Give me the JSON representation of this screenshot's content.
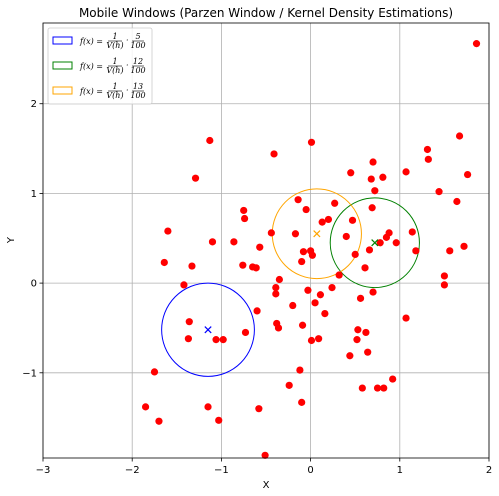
{
  "chart_data": {
    "type": "scatter",
    "title": "Mobile Windows (Parzen Window / Kernel Density Estimations)",
    "xlabel": "X",
    "ylabel": "Y",
    "xlim": [
      -3,
      2
    ],
    "ylim": [
      -1.95,
      2.9
    ],
    "xticks": [
      "−3",
      "−2",
      "−1",
      "0",
      "1",
      "2"
    ],
    "yticks": [
      "−1",
      "0",
      "1",
      "2"
    ],
    "grid": true,
    "legend_position": "top-left",
    "point_color": "#ff0000",
    "points": [
      [
        -1.85,
        -1.38
      ],
      [
        -1.7,
        -1.54
      ],
      [
        -1.75,
        -0.99
      ],
      [
        -1.64,
        0.23
      ],
      [
        -1.6,
        0.58
      ],
      [
        -1.42,
        -0.02
      ],
      [
        -1.36,
        -0.43
      ],
      [
        -1.37,
        -0.62
      ],
      [
        -1.33,
        0.19
      ],
      [
        -1.29,
        1.17
      ],
      [
        -1.13,
        1.59
      ],
      [
        -1.15,
        -1.38
      ],
      [
        -1.1,
        0.46
      ],
      [
        -1.06,
        -0.63
      ],
      [
        -1.03,
        -1.53
      ],
      [
        -0.98,
        -0.63
      ],
      [
        -0.86,
        0.46
      ],
      [
        -0.76,
        0.2
      ],
      [
        -0.75,
        0.81
      ],
      [
        -0.74,
        0.72
      ],
      [
        -0.73,
        -0.55
      ],
      [
        -0.65,
        0.18
      ],
      [
        -0.61,
        0.17
      ],
      [
        -0.6,
        -0.31
      ],
      [
        -0.58,
        -1.4
      ],
      [
        -0.57,
        0.4
      ],
      [
        -0.51,
        -1.92
      ],
      [
        -0.44,
        0.56
      ],
      [
        -0.41,
        1.44
      ],
      [
        -0.39,
        -0.05
      ],
      [
        -0.39,
        -0.12
      ],
      [
        -0.38,
        -0.45
      ],
      [
        -0.36,
        -0.5
      ],
      [
        -0.35,
        0.04
      ],
      [
        -0.24,
        -1.14
      ],
      [
        -0.2,
        -0.25
      ],
      [
        -0.17,
        0.55
      ],
      [
        -0.14,
        0.93
      ],
      [
        -0.12,
        -0.97
      ],
      [
        -0.1,
        0.24
      ],
      [
        -0.1,
        -1.33
      ],
      [
        -0.09,
        -0.47
      ],
      [
        -0.08,
        0.35
      ],
      [
        -0.05,
        0.82
      ],
      [
        -0.03,
        -0.08
      ],
      [
        0.0,
        0.36
      ],
      [
        0.01,
        1.57
      ],
      [
        0.01,
        -0.64
      ],
      [
        0.02,
        0.31
      ],
      [
        0.05,
        -0.22
      ],
      [
        0.09,
        -0.62
      ],
      [
        0.11,
        -0.13
      ],
      [
        0.13,
        0.68
      ],
      [
        0.16,
        -0.34
      ],
      [
        0.2,
        0.71
      ],
      [
        0.24,
        -0.05
      ],
      [
        0.27,
        0.89
      ],
      [
        0.32,
        0.09
      ],
      [
        0.4,
        0.52
      ],
      [
        0.44,
        -0.81
      ],
      [
        0.45,
        1.23
      ],
      [
        0.47,
        0.7
      ],
      [
        0.5,
        0.32
      ],
      [
        0.53,
        -0.52
      ],
      [
        0.52,
        -0.63
      ],
      [
        0.56,
        -0.17
      ],
      [
        0.58,
        -1.17
      ],
      [
        0.61,
        0.17
      ],
      [
        0.62,
        -0.55
      ],
      [
        0.64,
        -0.77
      ],
      [
        0.66,
        0.37
      ],
      [
        0.68,
        1.16
      ],
      [
        0.69,
        0.84
      ],
      [
        0.7,
        1.35
      ],
      [
        0.7,
        -0.1
      ],
      [
        0.72,
        1.03
      ],
      [
        0.75,
        -1.17
      ],
      [
        0.78,
        0.45
      ],
      [
        0.81,
        1.18
      ],
      [
        0.82,
        -1.17
      ],
      [
        0.85,
        0.51
      ],
      [
        0.88,
        0.56
      ],
      [
        0.92,
        -1.07
      ],
      [
        0.96,
        0.45
      ],
      [
        1.07,
        1.24
      ],
      [
        1.07,
        -0.39
      ],
      [
        1.14,
        0.57
      ],
      [
        1.18,
        0.36
      ],
      [
        1.31,
        1.49
      ],
      [
        1.32,
        1.38
      ],
      [
        1.44,
        1.02
      ],
      [
        1.5,
        0.08
      ],
      [
        1.5,
        -0.02
      ],
      [
        1.56,
        0.36
      ],
      [
        1.64,
        0.91
      ],
      [
        1.67,
        1.64
      ],
      [
        1.72,
        0.41
      ],
      [
        1.76,
        1.21
      ],
      [
        1.86,
        2.67
      ]
    ],
    "windows": [
      {
        "center": [
          -1.15,
          -0.52
        ],
        "radius": 0.52,
        "color": "#0000ff",
        "count": "5",
        "total": "100"
      },
      {
        "center": [
          0.72,
          0.45
        ],
        "radius": 0.5,
        "color": "#008000",
        "count": "12",
        "total": "100"
      },
      {
        "center": [
          0.07,
          0.55
        ],
        "radius": 0.5,
        "color": "#ffa500",
        "count": "13",
        "total": "100"
      }
    ],
    "legend": [
      {
        "prefix": "f(x) = ",
        "num1": "1",
        "den1": "V(h)",
        "num2": "5",
        "den2": "100",
        "color": "#0000ff"
      },
      {
        "prefix": "f(x) = ",
        "num1": "1",
        "den1": "V(h)",
        "num2": "12",
        "den2": "100",
        "color": "#008000"
      },
      {
        "prefix": "f(x) = ",
        "num1": "1",
        "den1": "V(h)",
        "num2": "13",
        "den2": "100",
        "color": "#ffa500"
      }
    ]
  }
}
